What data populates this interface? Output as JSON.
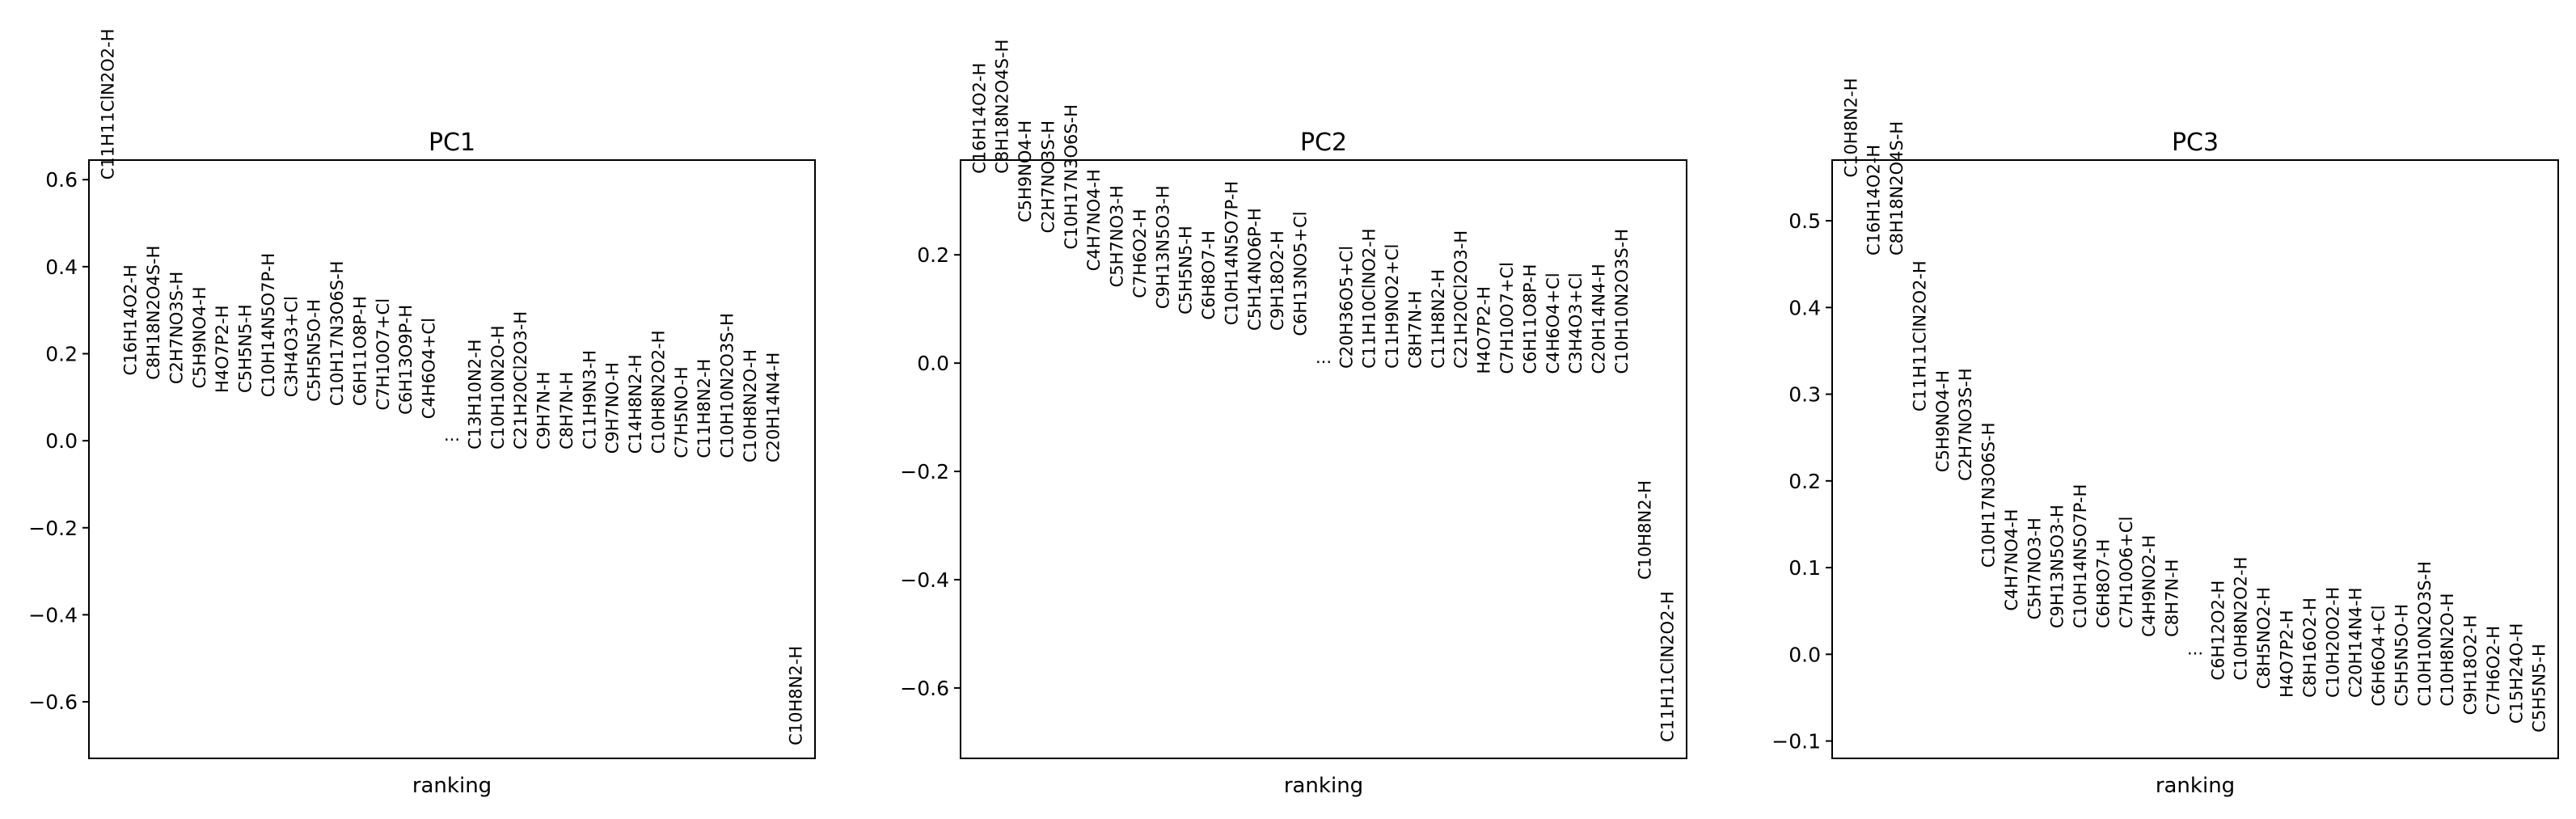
{
  "chart_data": [
    {
      "type": "scatter",
      "title": "PC1",
      "xlabel": "ranking",
      "ylabel": "",
      "ylim": [
        -0.73,
        0.645
      ],
      "yticks": [
        0.6,
        0.4,
        0.2,
        0.0,
        -0.2,
        -0.4,
        -0.6
      ],
      "ytick_labels": [
        "0.6",
        "0.4",
        "0.2",
        "0.0",
        "−0.2",
        "−0.4",
        "−0.6"
      ],
      "ellipsis": "...",
      "ellipsis_value": 0.0,
      "top": [
        {
          "label": "C11H11ClN2O2-H",
          "value": 0.6
        },
        {
          "label": "C16H14O2-H",
          "value": 0.15
        },
        {
          "label": "C8H18N2O4S-H",
          "value": 0.14
        },
        {
          "label": "C2H7NO3S-H",
          "value": 0.13
        },
        {
          "label": "C5H9NO4-H",
          "value": 0.12
        },
        {
          "label": "H4O7P2-H",
          "value": 0.11
        },
        {
          "label": "C5H5N5-H",
          "value": 0.11
        },
        {
          "label": "C10H14N5O7P-H",
          "value": 0.1
        },
        {
          "label": "C3H4O3+Cl",
          "value": 0.1
        },
        {
          "label": "C5H5N5O-H",
          "value": 0.09
        },
        {
          "label": "C10H17N3O6S-H",
          "value": 0.08
        },
        {
          "label": "C6H11O8P-H",
          "value": 0.08
        },
        {
          "label": "C7H10O7+Cl",
          "value": 0.07
        },
        {
          "label": "C6H13O9P-H",
          "value": 0.06
        },
        {
          "label": "C4H6O4+Cl",
          "value": 0.05
        }
      ],
      "bottom": [
        {
          "label": "C13H10N2-H",
          "value": -0.02
        },
        {
          "label": "C10H10N2O-H",
          "value": -0.02
        },
        {
          "label": "C21H20Cl2O3-H",
          "value": -0.02
        },
        {
          "label": "C9H7N-H",
          "value": -0.02
        },
        {
          "label": "C8H7N-H",
          "value": -0.02
        },
        {
          "label": "C11H9N3-H",
          "value": -0.02
        },
        {
          "label": "C9H7NO-H",
          "value": -0.03
        },
        {
          "label": "C14H8N2-H",
          "value": -0.03
        },
        {
          "label": "C10H8N2O2-H",
          "value": -0.03
        },
        {
          "label": "C7H5NO-H",
          "value": -0.04
        },
        {
          "label": "C11H8N2-H",
          "value": -0.04
        },
        {
          "label": "C10H10N2O3S-H",
          "value": -0.04
        },
        {
          "label": "C10H8N2O-H",
          "value": -0.05
        },
        {
          "label": "C20H14N4-H",
          "value": -0.05
        },
        {
          "label": "C10H8N2-H",
          "value": -0.7
        }
      ]
    },
    {
      "type": "scatter",
      "title": "PC2",
      "xlabel": "ranking",
      "ylabel": "",
      "ylim": [
        -0.73,
        0.375
      ],
      "yticks": [
        0.2,
        0.0,
        -0.2,
        -0.4,
        -0.6
      ],
      "ytick_labels": [
        "0.2",
        "0.0",
        "−0.2",
        "−0.4",
        "−0.6"
      ],
      "ellipsis": "...",
      "ellipsis_value": 0.0,
      "top": [
        {
          "label": "C16H14O2-H",
          "value": 0.35
        },
        {
          "label": "C8H18N2O4S-H",
          "value": 0.35
        },
        {
          "label": "C5H9NO4-H",
          "value": 0.26
        },
        {
          "label": "C2H7NO3S-H",
          "value": 0.24
        },
        {
          "label": "C10H17N3O6S-H",
          "value": 0.21
        },
        {
          "label": "C4H7NO4-H",
          "value": 0.17
        },
        {
          "label": "C5H7NO3-H",
          "value": 0.14
        },
        {
          "label": "C7H6O2-H",
          "value": 0.12
        },
        {
          "label": "C9H13N5O3-H",
          "value": 0.1
        },
        {
          "label": "C5H5N5-H",
          "value": 0.09
        },
        {
          "label": "C6H8O7-H",
          "value": 0.08
        },
        {
          "label": "C10H14N5O7P-H",
          "value": 0.07
        },
        {
          "label": "C5H14NO6P-H",
          "value": 0.06
        },
        {
          "label": "C9H18O2-H",
          "value": 0.06
        },
        {
          "label": "C6H13NO5+Cl",
          "value": 0.05
        }
      ],
      "bottom": [
        {
          "label": "C20H36O5+Cl",
          "value": -0.01
        },
        {
          "label": "C11H10ClNO2-H",
          "value": -0.01
        },
        {
          "label": "C11H9NO2+Cl",
          "value": -0.01
        },
        {
          "label": "C8H7N-H",
          "value": -0.01
        },
        {
          "label": "C11H8N2-H",
          "value": -0.01
        },
        {
          "label": "C21H20Cl2O3-H",
          "value": -0.01
        },
        {
          "label": "H4O7P2-H",
          "value": -0.02
        },
        {
          "label": "C7H10O7+Cl",
          "value": -0.02
        },
        {
          "label": "C6H11O8P-H",
          "value": -0.02
        },
        {
          "label": "C4H6O4+Cl",
          "value": -0.02
        },
        {
          "label": "C3H4O3+Cl",
          "value": -0.02
        },
        {
          "label": "C20H14N4-H",
          "value": -0.02
        },
        {
          "label": "C10H10N2O3S-H",
          "value": -0.02
        },
        {
          "label": "C10H8N2-H",
          "value": -0.4
        },
        {
          "label": "C11H11ClN2O2-H",
          "value": -0.7
        }
      ]
    },
    {
      "type": "scatter",
      "title": "PC3",
      "xlabel": "ranking",
      "ylabel": "",
      "ylim": [
        -0.12,
        0.57
      ],
      "yticks": [
        0.5,
        0.4,
        0.3,
        0.2,
        0.1,
        0.0,
        -0.1
      ],
      "ytick_labels": [
        "0.5",
        "0.4",
        "0.3",
        "0.2",
        "0.1",
        "0.0",
        "−0.1"
      ],
      "ellipsis": "...",
      "ellipsis_value": 0.0,
      "top": [
        {
          "label": "C10H8N2-H",
          "value": 0.55
        },
        {
          "label": "C16H14O2-H",
          "value": 0.46
        },
        {
          "label": "C8H18N2O4S-H",
          "value": 0.46
        },
        {
          "label": "C11H11ClN2O2-H",
          "value": 0.28
        },
        {
          "label": "C5H9NO4-H",
          "value": 0.21
        },
        {
          "label": "C2H7NO3S-H",
          "value": 0.2
        },
        {
          "label": "C10H17N3O6S-H",
          "value": 0.1
        },
        {
          "label": "C4H7NO4-H",
          "value": 0.05
        },
        {
          "label": "C5H7NO3-H",
          "value": 0.04
        },
        {
          "label": "C9H13N5O3-H",
          "value": 0.03
        },
        {
          "label": "C10H14N5O7P-H",
          "value": 0.03
        },
        {
          "label": "C6H8O7-H",
          "value": 0.03
        },
        {
          "label": "C7H10O6+Cl",
          "value": 0.03
        },
        {
          "label": "C4H9NO2-H",
          "value": 0.02
        },
        {
          "label": "C8H7N-H",
          "value": 0.02
        }
      ],
      "bottom": [
        {
          "label": "C6H12O2-H",
          "value": -0.03
        },
        {
          "label": "C10H8N2O2-H",
          "value": -0.03
        },
        {
          "label": "C8H5NO2-H",
          "value": -0.04
        },
        {
          "label": "H4O7P2-H",
          "value": -0.05
        },
        {
          "label": "C8H16O2-H",
          "value": -0.05
        },
        {
          "label": "C10H20O2-H",
          "value": -0.05
        },
        {
          "label": "C20H14N4-H",
          "value": -0.05
        },
        {
          "label": "C6H6O4+Cl",
          "value": -0.06
        },
        {
          "label": "C5H5N5O-H",
          "value": -0.06
        },
        {
          "label": "C10H10N2O3S-H",
          "value": -0.06
        },
        {
          "label": "C10H8N2O-H",
          "value": -0.06
        },
        {
          "label": "C9H18O2-H",
          "value": -0.07
        },
        {
          "label": "C7H6O2-H",
          "value": -0.07
        },
        {
          "label": "C15H24O-H",
          "value": -0.08
        },
        {
          "label": "C5H5N5-H",
          "value": -0.09
        }
      ]
    }
  ]
}
